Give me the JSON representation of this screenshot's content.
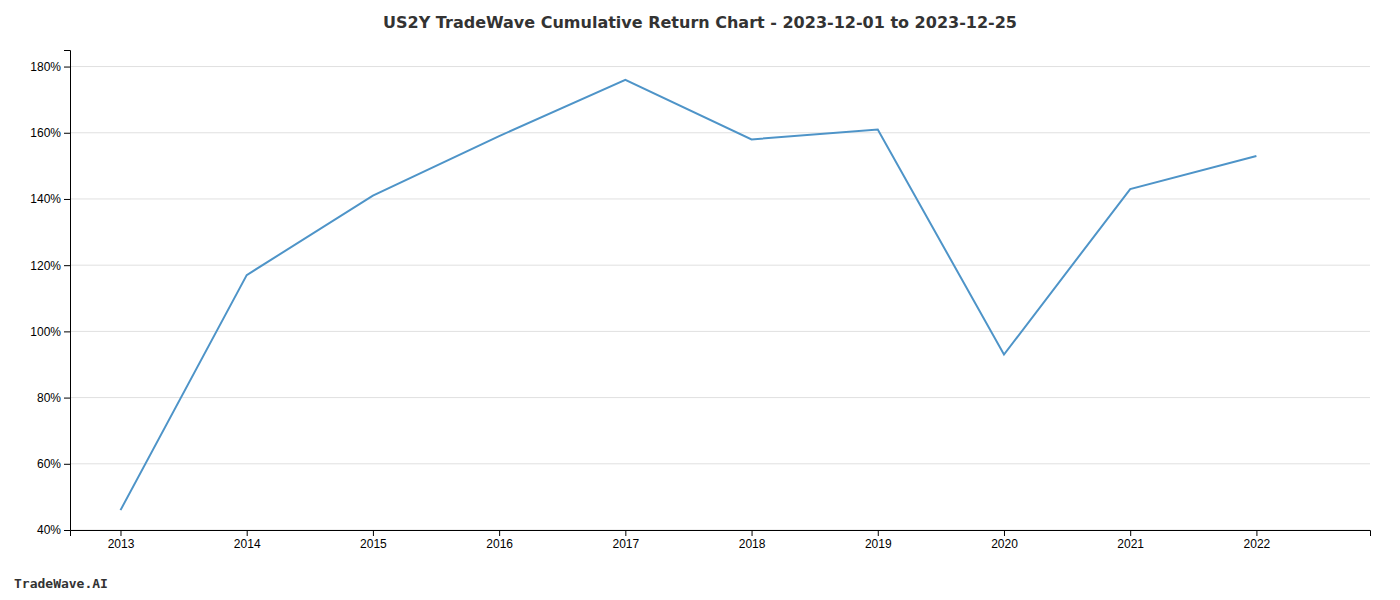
{
  "chart_data": {
    "type": "line",
    "title": "US2Y TradeWave Cumulative Return Chart - 2023-12-01 to 2023-12-25",
    "annotations": [
      "TradeWave.AI"
    ],
    "x": [
      2013,
      2014,
      2015,
      2016,
      2017,
      2018,
      2019,
      2020,
      2021,
      2022
    ],
    "values": [
      46,
      117,
      141,
      159,
      176,
      158,
      161,
      93,
      143,
      153
    ],
    "color": "#4e94c8",
    "xlim": [
      2012.6,
      2022.9
    ],
    "xticks": [
      2013,
      2014,
      2015,
      2016,
      2017,
      2018,
      2019,
      2020,
      2021,
      2022
    ],
    "ylim": [
      40,
      185
    ],
    "yticks": [
      {
        "value": 40,
        "label": "40%"
      },
      {
        "value": 60,
        "label": "60%"
      },
      {
        "value": 80,
        "label": "80%"
      },
      {
        "value": 100,
        "label": "100%"
      },
      {
        "value": 120,
        "label": "120%"
      },
      {
        "value": 140,
        "label": "140%"
      },
      {
        "value": 160,
        "label": "160%"
      },
      {
        "value": 180,
        "label": "180%"
      }
    ],
    "grid": true
  }
}
